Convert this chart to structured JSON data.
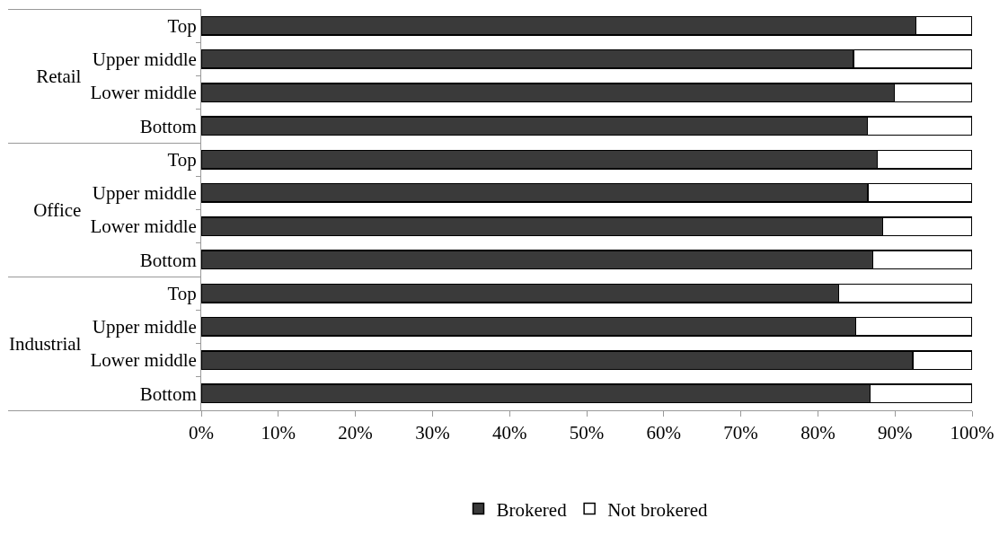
{
  "chart_data": {
    "type": "bar",
    "orientation": "horizontal",
    "stacked": true,
    "categories": [
      "Top",
      "Upper middle",
      "Lower middle",
      "Bottom",
      "Top",
      "Upper middle",
      "Lower middle",
      "Bottom",
      "Top",
      "Upper middle",
      "Lower middle",
      "Bottom"
    ],
    "annotations": [
      "Retail",
      "Office",
      "Industrial"
    ],
    "series": [
      {
        "name": "Brokered",
        "color": "#3a3a3a",
        "values": [
          92.7,
          84.6,
          89.9,
          86.4,
          87.7,
          86.5,
          88.4,
          87.1,
          82.7,
          84.9,
          92.3,
          86.8
        ]
      },
      {
        "name": "Not brokered",
        "color": "#ffffff",
        "values": [
          7.3,
          15.4,
          10.1,
          13.6,
          12.3,
          13.5,
          11.6,
          12.9,
          17.3,
          15.1,
          7.7,
          13.2
        ]
      }
    ],
    "xlim": [
      0,
      100
    ],
    "xticks": [
      {
        "value": 0,
        "label": "0%"
      },
      {
        "value": 10,
        "label": "10%"
      },
      {
        "value": 20,
        "label": "20%"
      },
      {
        "value": 30,
        "label": "30%"
      },
      {
        "value": 40,
        "label": "40%"
      },
      {
        "value": 50,
        "label": "50%"
      },
      {
        "value": 60,
        "label": "60%"
      },
      {
        "value": 70,
        "label": "70%"
      },
      {
        "value": 80,
        "label": "80%"
      },
      {
        "value": 90,
        "label": "90%"
      },
      {
        "value": 100,
        "label": "100%"
      }
    ],
    "grid": false,
    "legend": "bottom"
  }
}
